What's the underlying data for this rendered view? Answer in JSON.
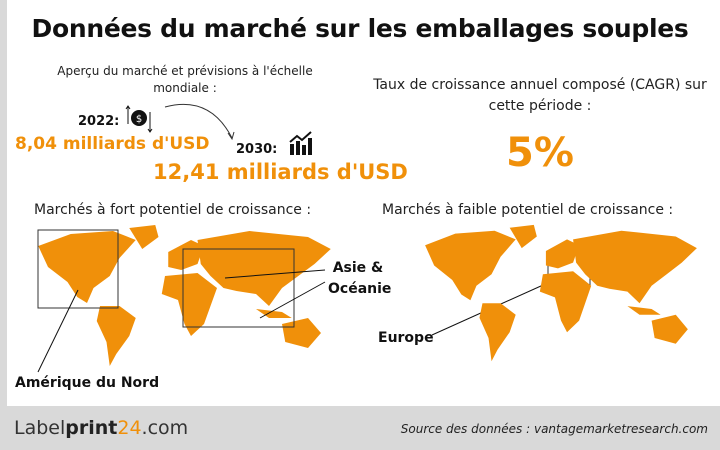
{
  "title": "Données du marché sur les emballages souples",
  "overview": {
    "heading": "Aperçu du marché et prévisions à l'échelle mondiale :",
    "year_2022": "2022:",
    "value_2022": "8,04 milliards d'USD",
    "year_2030": "2030:",
    "value_2030": "12,41 milliards d'USD"
  },
  "cagr": {
    "heading": "Taux de croissance annuel composé (CAGR) sur cette période :",
    "value": "5%"
  },
  "high_potential": {
    "heading": "Marchés à fort potentiel de croissance :",
    "regions": [
      "Asie & Océanie",
      "Amérique du Nord"
    ]
  },
  "low_potential": {
    "heading": "Marchés à faible potentiel de croissance :",
    "regions": [
      "Europe"
    ]
  },
  "footer": {
    "logo_part1": "Label",
    "logo_part2": "print",
    "logo_part3": "24",
    "logo_part4": ".com",
    "source": "Source des données : vantagemarketresearch.com"
  },
  "colors": {
    "accent": "#f0900a",
    "footer_bg": "#d9d9d9"
  },
  "icons": [
    "dollar-exchange-icon",
    "bar-chart-growth-icon",
    "curved-arrow-icon"
  ]
}
